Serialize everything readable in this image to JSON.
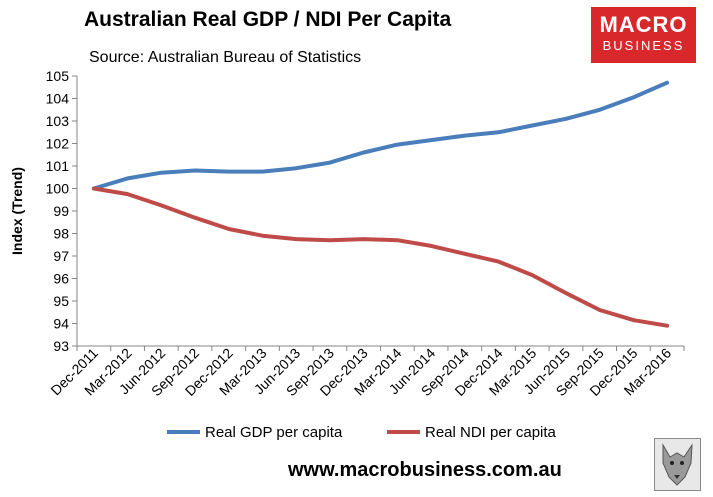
{
  "header": {
    "title": "Australian Real GDP / NDI Per Capita",
    "subtitle": "Source: Australian Bureau of Statistics"
  },
  "logo": {
    "line1": "MACRO",
    "line2": "BUSINESS"
  },
  "footer": {
    "url": "www.macrobusiness.com.au"
  },
  "colors": {
    "gdp": "#4a7ebb",
    "ndi": "#be4b48",
    "axis": "#868686",
    "logo_bg": "#d9282b"
  },
  "chart_data": {
    "type": "line",
    "title": "Australian Real GDP / NDI Per Capita",
    "subtitle": "Source: Australian Bureau of Statistics",
    "xlabel": "",
    "ylabel": "Index (Trend)",
    "ylim": [
      93,
      105
    ],
    "yticks": [
      93,
      94,
      95,
      96,
      97,
      98,
      99,
      100,
      101,
      102,
      103,
      104,
      105
    ],
    "grid": false,
    "legend_position": "bottom",
    "categories": [
      "Dec-2011",
      "Mar-2012",
      "Jun-2012",
      "Sep-2012",
      "Dec-2012",
      "Mar-2013",
      "Jun-2013",
      "Sep-2013",
      "Dec-2013",
      "Mar-2014",
      "Jun-2014",
      "Sep-2014",
      "Dec-2014",
      "Mar-2015",
      "Jun-2015",
      "Sep-2015",
      "Dec-2015",
      "Mar-2016"
    ],
    "series": [
      {
        "name": "Real GDP per capita",
        "color": "#4a7ebb",
        "values": [
          100.0,
          100.45,
          100.7,
          100.8,
          100.75,
          100.75,
          100.9,
          101.15,
          101.6,
          101.95,
          102.15,
          102.35,
          102.5,
          102.8,
          103.1,
          103.5,
          104.05,
          104.7
        ]
      },
      {
        "name": "Real NDI per capita",
        "color": "#be4b48",
        "values": [
          100.0,
          99.75,
          99.25,
          98.7,
          98.2,
          97.9,
          97.75,
          97.7,
          97.75,
          97.7,
          97.45,
          97.1,
          96.75,
          96.15,
          95.35,
          94.6,
          94.15,
          93.9
        ]
      }
    ]
  }
}
